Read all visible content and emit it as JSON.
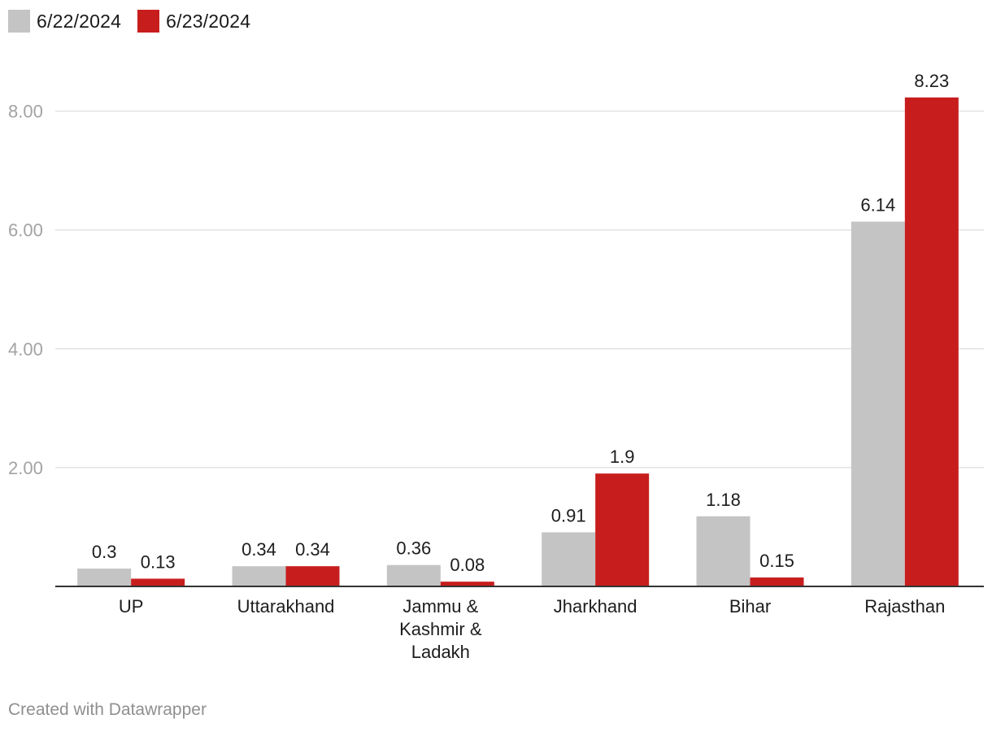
{
  "legend": [
    {
      "label": "6/22/2024",
      "color": "#c4c4c4"
    },
    {
      "label": "6/23/2024",
      "color": "#c71e1d"
    }
  ],
  "footer": {
    "credit": "Created with Datawrapper"
  },
  "chart_data": {
    "type": "bar",
    "categories": [
      "UP",
      "Uttarakhand",
      "Jammu & Kashmir & Ladakh",
      "Jharkhand",
      "Bihar",
      "Rajasthan"
    ],
    "category_lines": [
      [
        "UP"
      ],
      [
        "Uttarakhand"
      ],
      [
        "Jammu &",
        "Kashmir &",
        "Ladakh"
      ],
      [
        "Jharkhand"
      ],
      [
        "Bihar"
      ],
      [
        "Rajasthan"
      ]
    ],
    "series": [
      {
        "name": "6/22/2024",
        "color": "#c4c4c4",
        "values": [
          0.3,
          0.34,
          0.36,
          0.91,
          1.18,
          6.14
        ],
        "labels": [
          "0.3",
          "0.34",
          "0.36",
          "0.91",
          "1.18",
          "6.14"
        ]
      },
      {
        "name": "6/23/2024",
        "color": "#c71e1d",
        "values": [
          0.13,
          0.34,
          0.08,
          1.9,
          0.15,
          8.23
        ],
        "labels": [
          "0.13",
          "0.34",
          "0.08",
          "1.9",
          "0.15",
          "8.23"
        ]
      }
    ],
    "yticks": [
      2,
      4,
      6,
      8
    ],
    "ytick_labels": [
      "2.00",
      "4.00",
      "6.00",
      "8.00"
    ],
    "ylim": [
      0,
      8.23
    ],
    "title": "",
    "xlabel": "",
    "ylabel": "",
    "grid": true,
    "legend_position": "top-left"
  }
}
